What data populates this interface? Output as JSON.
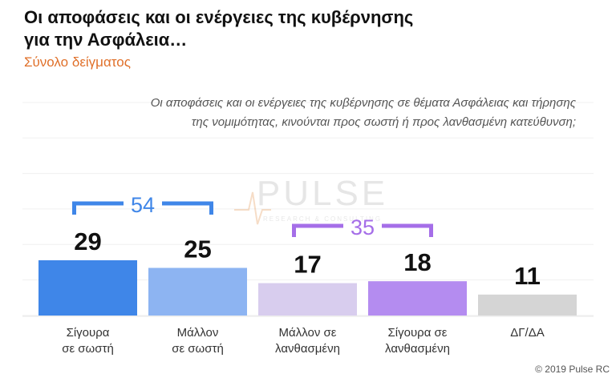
{
  "title_line1": "Οι αποφάσεις και οι ενέργειες της κυβέρνησης",
  "title_line2": "για την Ασφάλεια…",
  "subtitle": "Σύνολο δείγματος",
  "question_line1": "Οι αποφάσεις και οι ενέργειες της κυβέρνησης σε θέματα Ασφάλειας και τήρησης",
  "question_line2": "της νομιμότητας, κινούνται προς σωστή ή προς λανθασμένη κατεύθυνση;",
  "copyright": "© 2019 Pulse RC",
  "watermark": {
    "main": "PULSE",
    "sub": "RESEARCH & CONSULTING"
  },
  "chart_data": {
    "type": "bar",
    "categories": [
      [
        "Σίγουρα",
        "σε σωστή"
      ],
      [
        "Μάλλον",
        "σε σωστή"
      ],
      [
        "Μάλλον σε",
        "λανθασμένη"
      ],
      [
        "Σίγουρα σε",
        "λανθασμένη"
      ],
      [
        "ΔΓ/ΔΑ"
      ]
    ],
    "values": [
      29,
      25,
      17,
      18,
      11
    ],
    "colors": [
      "#3f86e8",
      "#8db4f2",
      "#d8cdee",
      "#b48cf0",
      "#d5d5d5"
    ],
    "ylim": [
      0,
      30
    ],
    "groups": [
      {
        "label": "54",
        "from": 0,
        "to": 1,
        "color": "#3f86e8"
      },
      {
        "label": "35",
        "from": 2,
        "to": 3,
        "color": "#a56ee8"
      }
    ],
    "grid": true
  }
}
